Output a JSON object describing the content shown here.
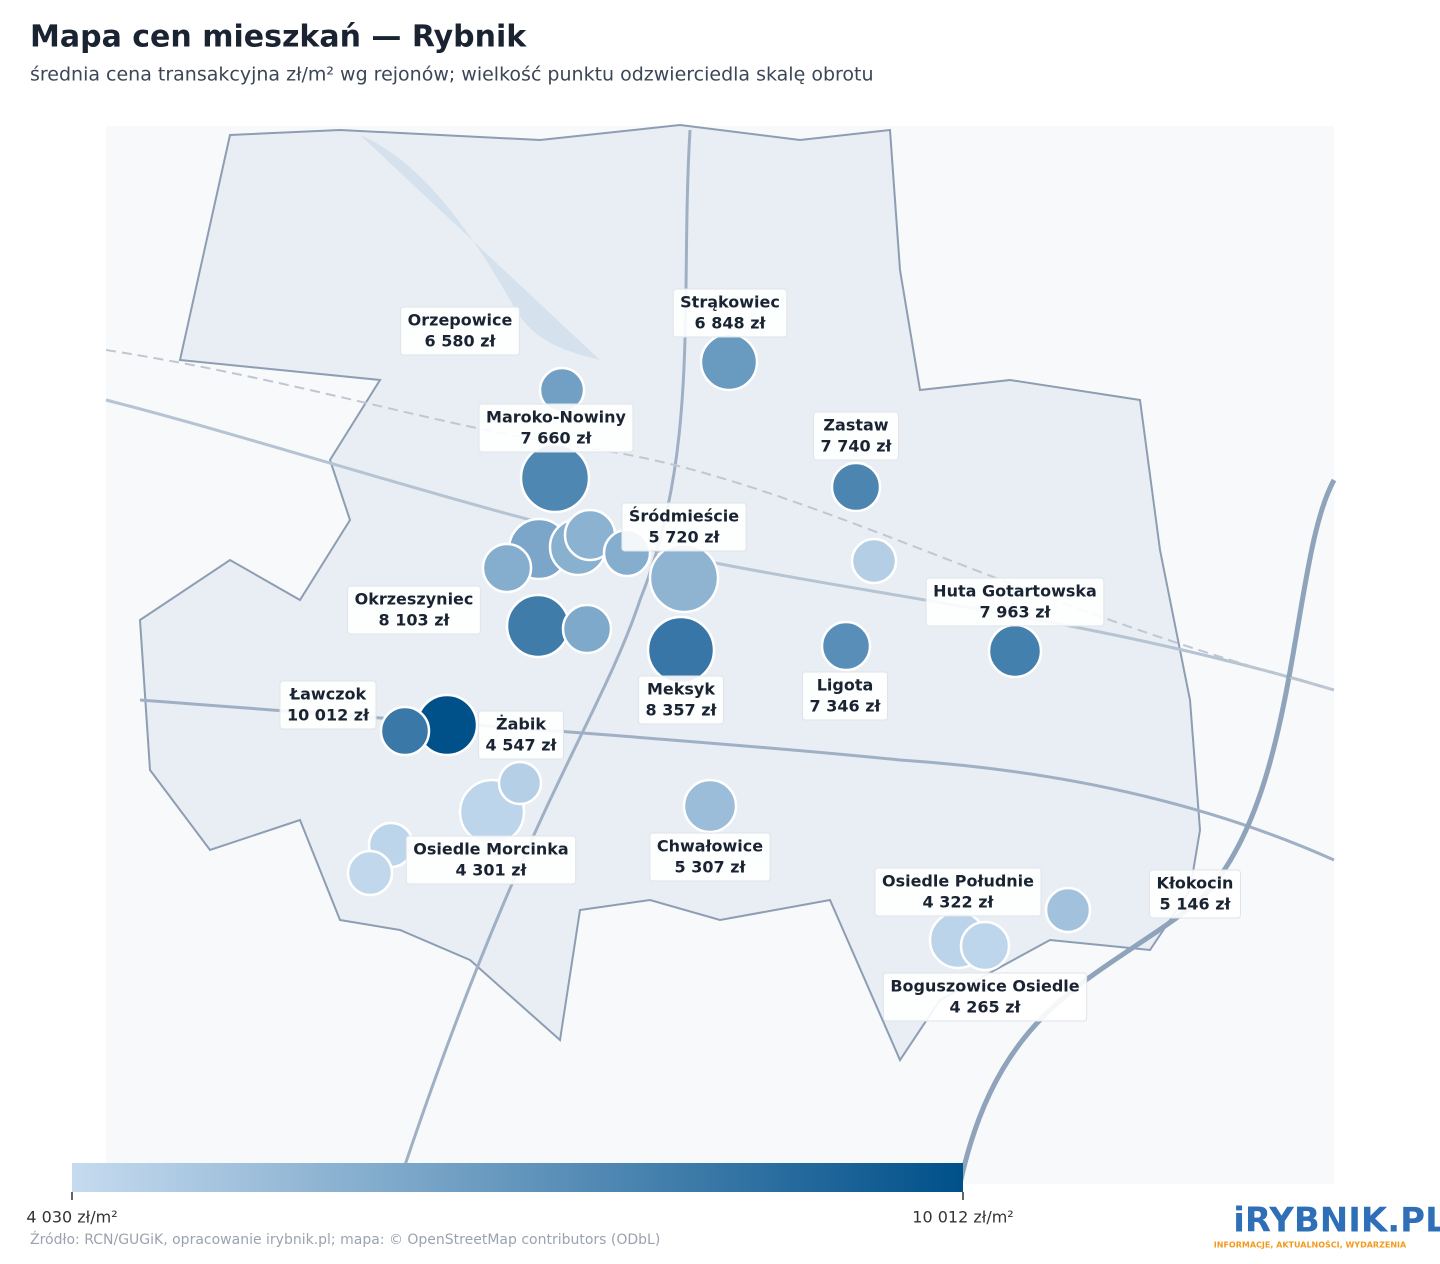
{
  "chart_data": {
    "type": "bubble_map",
    "title": "Mapa cen mieszkań — Rybnik",
    "subtitle": "średnia cena transakcyjna zł/m² wg rejonów; wielkość punktu odzwierciedla skalę obrotu",
    "categories": [
      "Orzepowice",
      "Strąkowiec",
      "Maroko-Nowiny",
      "Zastaw",
      "Śródmieście",
      "Okrzeszyniec",
      "Huta Gotartowska",
      "Ligota",
      "Meksyk",
      "Ławczok",
      "Żabik",
      "Osiedle Morcinka",
      "Chwałowice",
      "Osiedle Południe",
      "Boguszowice Osiedle",
      "Kłokocin",
      null,
      null,
      null,
      null,
      null,
      null,
      null,
      null,
      null,
      null
    ],
    "values": [
      6580,
      6848,
      7660,
      7740,
      5720,
      8103,
      7963,
      7346,
      8357,
      10012,
      4547,
      4301,
      5307,
      4322,
      4265,
      5146,
      6300,
      5800,
      5900,
      6000,
      6000,
      6200,
      4600,
      8300,
      4300,
      4200
    ],
    "value_labels": [
      "6 580 zł",
      "6 848 zł",
      "7 660 zł",
      "7 740 zł",
      "5 720 zł",
      "8 103 zł",
      "7 963 zł",
      "7 346 zł",
      "8 357 zł",
      "10 012 zł",
      "4 547 zł",
      "4 301 zł",
      "5 307 zł",
      "4 322 zł",
      "4 265 zł",
      "5 146 zł",
      null,
      null,
      null,
      null,
      null,
      null,
      null,
      null,
      null,
      null
    ],
    "colorscale": {
      "range": [
        4030,
        10012
      ],
      "colors": [
        "#c6dbef",
        "#00508a"
      ],
      "ticks": [
        {
          "value": 4030,
          "label": "4 030 zł/m²"
        },
        {
          "value": 10012,
          "label": "10 012 zł/m²"
        }
      ]
    },
    "source": "Źródło: RCN/GUGiK, opracowanie irybnik.pl; mapa: © OpenStreetMap contributors (ODbL)",
    "logo": "iRYBNIK.PL",
    "logo_tagline": "INFORMACJE, AKTUALNOŚCI, WYDARZENIA"
  }
}
